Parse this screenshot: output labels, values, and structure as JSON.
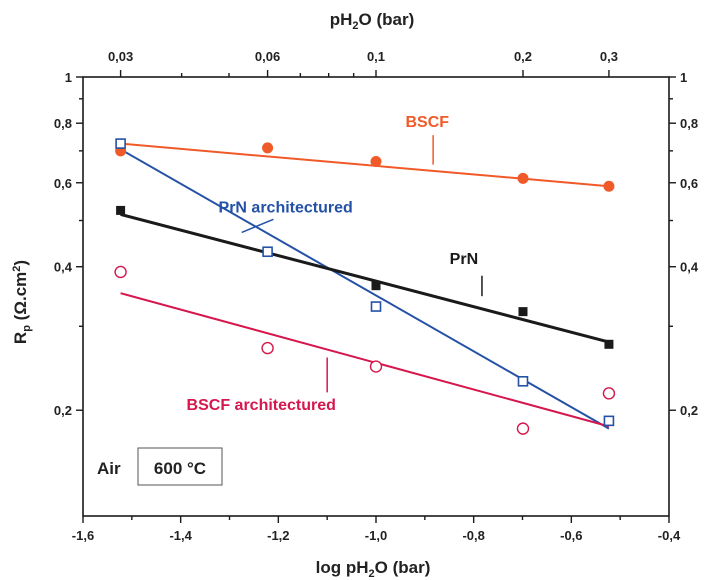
{
  "chart_data": {
    "type": "scatter",
    "title": "",
    "xlabel_bottom": {
      "pre": "log pH",
      "sub": "2",
      "post": "O (bar)"
    },
    "xlabel_top": {
      "pre": "pH",
      "sub": "2",
      "post": "O (bar)"
    },
    "ylabel": {
      "pre": "R",
      "sub": "p",
      "mid": " (Ω.cm",
      "sup": "2",
      "post": ")"
    },
    "x_range": [
      -1.6,
      -0.4
    ],
    "y_range": [
      0.12,
      1.0
    ],
    "y_scale": "log",
    "x_ticks": [
      -1.6,
      -1.4,
      -1.2,
      -1.0,
      -0.8,
      -0.6,
      -0.4
    ],
    "x_tick_labels": [
      "-1,6",
      "-1,4",
      "-1,2",
      "-1,0",
      "-0,8",
      "-0,6",
      "-0,4"
    ],
    "top_ticks": [
      {
        "x": -1.523,
        "label": "0,03"
      },
      {
        "x": -1.222,
        "label": "0,06"
      },
      {
        "x": -1.0,
        "label": "0,1"
      },
      {
        "x": -0.699,
        "label": "0,2"
      },
      {
        "x": -0.523,
        "label": "0,3"
      }
    ],
    "y_ticks": [
      {
        "y": 1.0,
        "label": "1"
      },
      {
        "y": 0.8,
        "label": "0,8"
      },
      {
        "y": 0.6,
        "label": "0,6"
      },
      {
        "y": 0.4,
        "label": "0,4"
      },
      {
        "y": 0.2,
        "label": "0,2"
      }
    ],
    "series": [
      {
        "name": "BSCF",
        "color": "#f05a28",
        "marker": "filled-circle",
        "points": [
          [
            -1.523,
            0.7
          ],
          [
            -1.222,
            0.71
          ],
          [
            -1.0,
            0.665
          ],
          [
            -0.699,
            0.613
          ],
          [
            -0.523,
            0.59
          ]
        ],
        "fit": [
          [
            -1.523,
            0.725
          ],
          [
            -0.523,
            0.59
          ]
        ],
        "label_pos": [
          -0.895,
          0.785
        ],
        "leader": [
          [
            -0.883,
            0.755
          ],
          [
            -0.883,
            0.655
          ]
        ]
      },
      {
        "name": "PrN architectured",
        "color": "#2451a6",
        "marker": "open-square",
        "points": [
          [
            -1.523,
            0.725
          ],
          [
            -1.222,
            0.43
          ],
          [
            -1.0,
            0.33
          ],
          [
            -0.699,
            0.23
          ],
          [
            -0.523,
            0.19
          ]
        ],
        "fit": [
          [
            -1.523,
            0.705
          ],
          [
            -0.523,
            0.183
          ]
        ],
        "label_pos": [
          -1.185,
          0.52
        ],
        "leader": [
          [
            -1.21,
            0.503
          ],
          [
            -1.275,
            0.472
          ]
        ]
      },
      {
        "name": "PrN",
        "color": "#1a1a1a",
        "marker": "filled-square",
        "points": [
          [
            -1.523,
            0.525
          ],
          [
            -1.0,
            0.365
          ],
          [
            -0.699,
            0.322
          ],
          [
            -0.523,
            0.275
          ]
        ],
        "fit": [
          [
            -1.523,
            0.515
          ],
          [
            -0.523,
            0.278
          ]
        ],
        "label_pos": [
          -0.82,
          0.405
        ],
        "leader": [
          [
            -0.783,
            0.383
          ],
          [
            -0.783,
            0.347
          ]
        ]
      },
      {
        "name": "BSCF architectured",
        "color": "#d6174d",
        "marker": "open-circle",
        "points": [
          [
            -1.523,
            0.39
          ],
          [
            -1.222,
            0.27
          ],
          [
            -1.0,
            0.247
          ],
          [
            -0.699,
            0.183
          ],
          [
            -0.523,
            0.217
          ]
        ],
        "fit": [
          [
            -1.523,
            0.352
          ],
          [
            -0.523,
            0.185
          ]
        ],
        "label_pos": [
          -1.235,
          0.2
        ],
        "leader": [
          [
            -1.1,
            0.258
          ],
          [
            -1.1,
            0.218
          ]
        ]
      }
    ],
    "annotation": {
      "air": "Air",
      "temp": "600 °C"
    }
  }
}
